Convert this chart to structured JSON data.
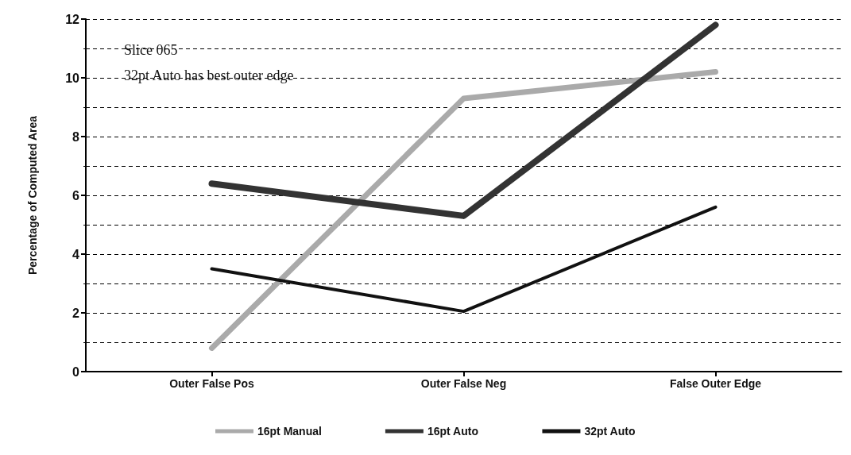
{
  "chart_data": {
    "type": "line",
    "ylabel": "Percentage of Computed Area",
    "categories": [
      "Outer False Pos",
      "Outer False Neg",
      "False Outer Edge"
    ],
    "series": [
      {
        "name": "16pt Manual",
        "color": "#aaaaaa",
        "values": [
          0.8,
          9.3,
          10.2
        ]
      },
      {
        "name": "16pt Auto",
        "color": "#333333",
        "values": [
          6.4,
          5.3,
          11.8
        ]
      },
      {
        "name": "32pt Auto",
        "color": "#111111",
        "values": [
          3.5,
          2.05,
          5.6
        ]
      }
    ],
    "ylim": [
      0,
      12
    ],
    "yticks": [
      0,
      2,
      4,
      6,
      8,
      10,
      12
    ],
    "grid": "y",
    "legend": "bottom",
    "marker": "none",
    "line_style": "solid",
    "annotations": [
      "Slice 065",
      "32pt Auto has best outer edge"
    ]
  }
}
